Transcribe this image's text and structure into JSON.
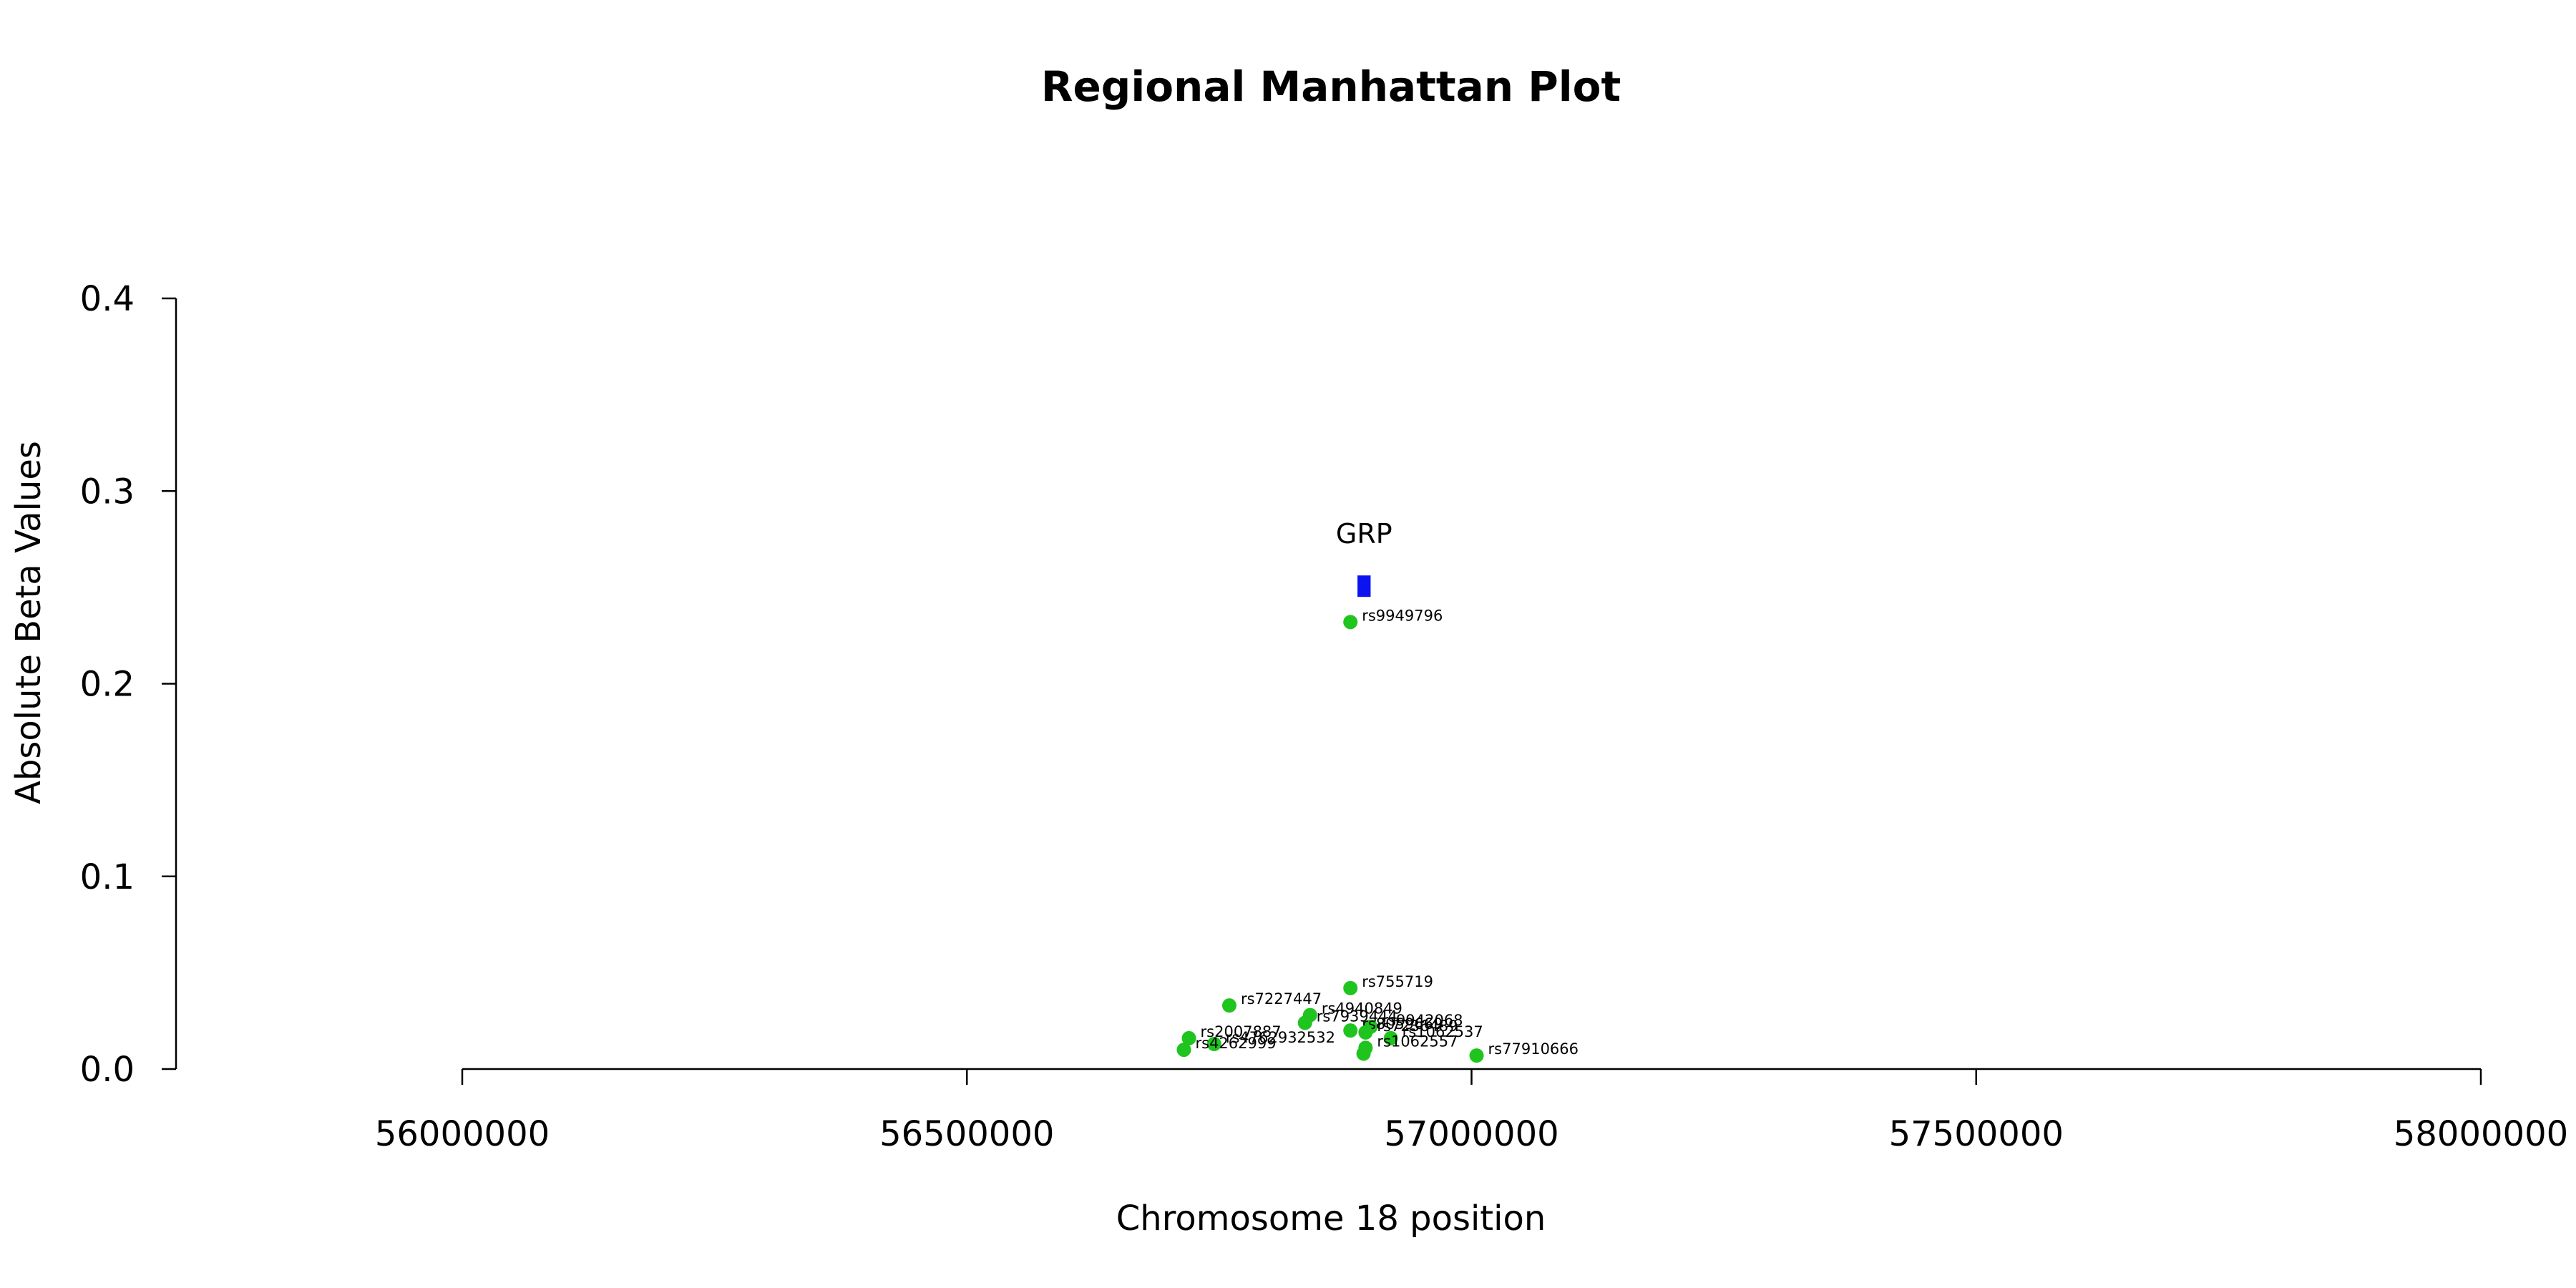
{
  "chart_data": {
    "type": "scatter",
    "title": "Regional Manhattan Plot",
    "xlabel": "Chromosome 18 position",
    "ylabel": "Absolute Beta Values",
    "xlim": [
      56000000,
      58000000
    ],
    "ylim": [
      0,
      0.4
    ],
    "x_ticks": [
      "56000000",
      "56500000",
      "57000000",
      "57500000",
      "58000000"
    ],
    "y_ticks": [
      "0.0",
      "0.1",
      "0.2",
      "0.3",
      "0.4"
    ],
    "grid": false,
    "point_color": "#1FC41F",
    "gene_color": "#0A14F0",
    "gene": {
      "name": "GRP",
      "start": 56887000,
      "end": 56900000,
      "y": 0.251
    },
    "points": [
      {
        "label": "rs9949796",
        "x": 56880000,
        "y": 0.232
      },
      {
        "label": "rs755719",
        "x": 56880000,
        "y": 0.042
      },
      {
        "label": "rs7227447",
        "x": 56760000,
        "y": 0.033
      },
      {
        "label": "rs4940849",
        "x": 56840000,
        "y": 0.028
      },
      {
        "label": "rs7939444",
        "x": 56835000,
        "y": 0.024
      },
      {
        "label": "rs9942068",
        "x": 56900000,
        "y": 0.022
      },
      {
        "label": "rs8059669",
        "x": 56880000,
        "y": 0.02
      },
      {
        "label": "rs7236489",
        "x": 56895000,
        "y": 0.019
      },
      {
        "label": "rs1062537",
        "x": 56920000,
        "y": 0.016
      },
      {
        "label": "rs2007887",
        "x": 56720000,
        "y": 0.016
      },
      {
        "label": "rs4762932532",
        "x": 56745000,
        "y": 0.013
      },
      {
        "label": "rs1062557",
        "x": 56895000,
        "y": 0.011
      },
      {
        "label": "rs4262999",
        "x": 56715000,
        "y": 0.01
      },
      {
        "label": "rs77910666",
        "x": 57005000,
        "y": 0.007
      },
      {
        "label": "",
        "x": 56893000,
        "y": 0.008
      }
    ]
  }
}
